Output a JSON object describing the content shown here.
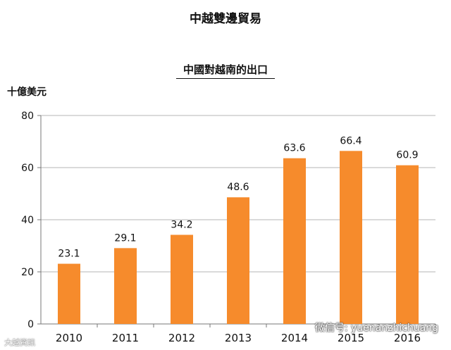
{
  "chart_data": {
    "type": "bar",
    "title": "中越雙邊貿易",
    "subtitle": "中國對越南的出口",
    "ylabel": "十億美元",
    "categories": [
      "2010",
      "2011",
      "2012",
      "2013",
      "2014",
      "2015",
      "2016"
    ],
    "values": [
      23.1,
      29.1,
      34.2,
      48.6,
      63.6,
      66.4,
      60.9
    ],
    "ylim": [
      0,
      80
    ],
    "yticks": [
      0,
      20,
      40,
      60,
      80
    ],
    "grid": true,
    "bar_color": "#F68B2C"
  },
  "watermark": "微信号: yuenanzhichuang",
  "corner_mark": "大越資訊"
}
